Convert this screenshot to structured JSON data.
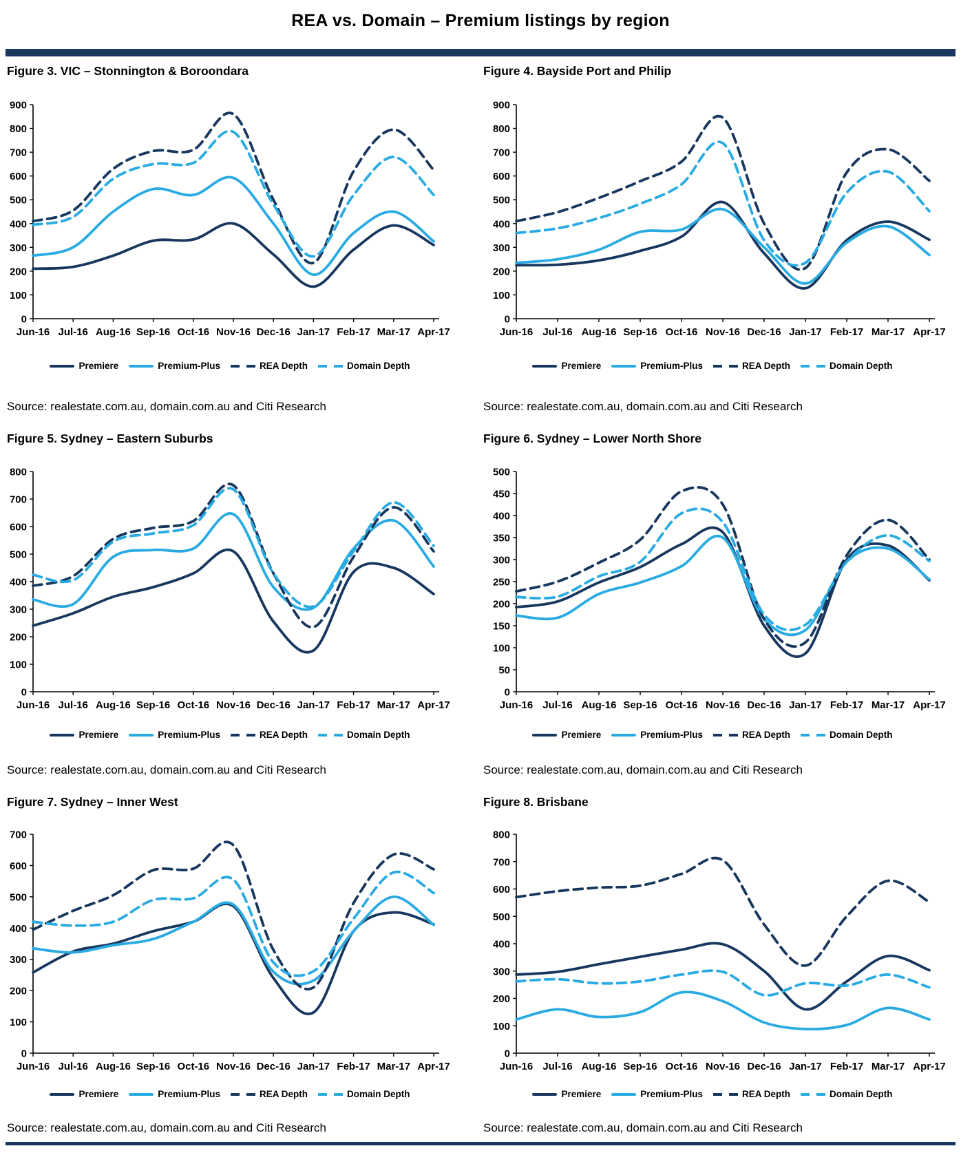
{
  "page": {
    "title": "REA vs. Domain – Premium listings by region",
    "accent_color": "#17375E",
    "source_label": "Source: realestate.com.au, domain.com.au and Citi Research"
  },
  "legend": [
    "Premiere",
    "Premium-Plus",
    "REA Depth",
    "Domain Depth"
  ],
  "series_styles": [
    {
      "name": "Premiere",
      "color": "#17375E",
      "dashed": false
    },
    {
      "name": "Premium-Plus",
      "color": "#29ABE2",
      "dashed": false
    },
    {
      "name": "REA Depth",
      "color": "#17375E",
      "dashed": true
    },
    {
      "name": "Domain Depth",
      "color": "#29ABE2",
      "dashed": true
    }
  ],
  "months": [
    "Jun-16",
    "Jul-16",
    "Aug-16",
    "Sep-16",
    "Oct-16",
    "Nov-16",
    "Dec-16",
    "Jan-17",
    "Feb-17",
    "Mar-17",
    "Apr-17"
  ],
  "chart_data": [
    {
      "type": "line",
      "title": "Figure 3. VIC – Stonnington & Boroondara",
      "categories": [
        "Jun-16",
        "Jul-16",
        "Aug-16",
        "Sep-16",
        "Oct-16",
        "Nov-16",
        "Dec-16",
        "Jan-17",
        "Feb-17",
        "Mar-17",
        "Apr-17"
      ],
      "ylim": [
        0,
        900
      ],
      "ystep": 100,
      "grid": false,
      "legend_position": "bottom",
      "series": [
        {
          "name": "Premiere",
          "values": [
            210,
            218,
            265,
            328,
            333,
            400,
            270,
            135,
            290,
            392,
            310
          ]
        },
        {
          "name": "Premium-Plus",
          "values": [
            265,
            300,
            450,
            545,
            520,
            592,
            400,
            185,
            360,
            450,
            325
          ]
        },
        {
          "name": "REA Depth",
          "values": [
            410,
            455,
            630,
            705,
            710,
            860,
            500,
            235,
            620,
            795,
            625
          ]
        },
        {
          "name": "Domain Depth",
          "values": [
            395,
            428,
            588,
            650,
            655,
            785,
            480,
            262,
            520,
            680,
            520
          ]
        }
      ]
    },
    {
      "type": "line",
      "title": "Figure 4. Bayside Port and Philip",
      "categories": [
        "Jun-16",
        "Jul-16",
        "Aug-16",
        "Sep-16",
        "Oct-16",
        "Nov-16",
        "Dec-16",
        "Jan-17",
        "Feb-17",
        "Mar-17",
        "Apr-17"
      ],
      "ylim": [
        0,
        900
      ],
      "ystep": 100,
      "grid": false,
      "legend_position": "bottom",
      "series": [
        {
          "name": "Premiere",
          "values": [
            225,
            227,
            245,
            285,
            345,
            490,
            275,
            128,
            330,
            408,
            332
          ]
        },
        {
          "name": "Premium-Plus",
          "values": [
            235,
            250,
            290,
            365,
            375,
            460,
            300,
            148,
            320,
            388,
            268
          ]
        },
        {
          "name": "REA Depth",
          "values": [
            410,
            448,
            508,
            578,
            660,
            845,
            400,
            213,
            615,
            712,
            580
          ]
        },
        {
          "name": "Domain Depth",
          "values": [
            360,
            380,
            423,
            483,
            565,
            738,
            330,
            235,
            530,
            618,
            452
          ]
        }
      ]
    },
    {
      "type": "line",
      "title": "Figure 5. Sydney – Eastern Suburbs",
      "categories": [
        "Jun-16",
        "Jul-16",
        "Aug-16",
        "Sep-16",
        "Oct-16",
        "Nov-16",
        "Dec-16",
        "Jan-17",
        "Feb-17",
        "Mar-17",
        "Apr-17"
      ],
      "ylim": [
        0,
        800
      ],
      "ystep": 100,
      "grid": false,
      "legend_position": "bottom",
      "series": [
        {
          "name": "Premiere",
          "values": [
            240,
            285,
            345,
            380,
            430,
            510,
            255,
            150,
            435,
            450,
            355
          ]
        },
        {
          "name": "Premium-Plus",
          "values": [
            335,
            318,
            490,
            515,
            520,
            645,
            380,
            305,
            520,
            622,
            455
          ]
        },
        {
          "name": "REA Depth",
          "values": [
            385,
            420,
            555,
            595,
            620,
            750,
            430,
            235,
            490,
            670,
            510
          ]
        },
        {
          "name": "Domain Depth",
          "values": [
            425,
            405,
            545,
            575,
            605,
            735,
            430,
            310,
            510,
            688,
            530
          ]
        }
      ]
    },
    {
      "type": "line",
      "title": "Figure 6. Sydney – Lower North Shore",
      "categories": [
        "Jun-16",
        "Jul-16",
        "Aug-16",
        "Sep-16",
        "Oct-16",
        "Nov-16",
        "Dec-16",
        "Jan-17",
        "Feb-17",
        "Mar-17",
        "Apr-17"
      ],
      "ylim": [
        0,
        500
      ],
      "ystep": 50,
      "grid": false,
      "legend_position": "bottom",
      "series": [
        {
          "name": "Premiere",
          "values": [
            192,
            205,
            248,
            283,
            335,
            362,
            150,
            87,
            300,
            332,
            253
          ]
        },
        {
          "name": "Premium-Plus",
          "values": [
            173,
            168,
            222,
            248,
            285,
            350,
            165,
            140,
            295,
            325,
            255
          ]
        },
        {
          "name": "REA Depth",
          "values": [
            228,
            250,
            293,
            345,
            455,
            425,
            165,
            112,
            310,
            390,
            300
          ]
        },
        {
          "name": "Domain Depth",
          "values": [
            215,
            216,
            262,
            295,
            405,
            385,
            175,
            152,
            295,
            355,
            297
          ]
        }
      ]
    },
    {
      "type": "line",
      "title": "Figure 7. Sydney – Inner West",
      "categories": [
        "Jun-16",
        "Jul-16",
        "Aug-16",
        "Sep-16",
        "Oct-16",
        "Nov-16",
        "Dec-16",
        "Jan-17",
        "Feb-17",
        "Mar-17",
        "Apr-17"
      ],
      "ylim": [
        0,
        700
      ],
      "ystep": 100,
      "grid": false,
      "legend_position": "bottom",
      "series": [
        {
          "name": "Premiere",
          "values": [
            258,
            325,
            350,
            390,
            420,
            470,
            240,
            130,
            390,
            450,
            412
          ]
        },
        {
          "name": "Premium-Plus",
          "values": [
            335,
            322,
            345,
            365,
            420,
            475,
            260,
            232,
            390,
            500,
            410
          ]
        },
        {
          "name": "REA Depth",
          "values": [
            395,
            455,
            505,
            585,
            590,
            665,
            330,
            210,
            480,
            635,
            588
          ]
        },
        {
          "name": "Domain Depth",
          "values": [
            420,
            408,
            420,
            490,
            495,
            555,
            290,
            262,
            430,
            578,
            512
          ]
        }
      ]
    },
    {
      "type": "line",
      "title": "Figure 8. Brisbane",
      "categories": [
        "Jun-16",
        "Jul-16",
        "Aug-16",
        "Sep-16",
        "Oct-16",
        "Nov-16",
        "Dec-16",
        "Jan-17",
        "Feb-17",
        "Mar-17",
        "Apr-17"
      ],
      "ylim": [
        0,
        800
      ],
      "ystep": 100,
      "grid": false,
      "legend_position": "bottom",
      "series": [
        {
          "name": "Premiere",
          "values": [
            287,
            297,
            325,
            352,
            378,
            398,
            300,
            160,
            262,
            355,
            303
          ]
        },
        {
          "name": "Premium-Plus",
          "values": [
            123,
            160,
            132,
            150,
            222,
            190,
            112,
            88,
            103,
            165,
            123
          ]
        },
        {
          "name": "REA Depth",
          "values": [
            570,
            592,
            605,
            612,
            655,
            705,
            470,
            320,
            500,
            630,
            552
          ]
        },
        {
          "name": "Domain Depth",
          "values": [
            262,
            270,
            255,
            262,
            287,
            297,
            212,
            255,
            247,
            287,
            240
          ]
        }
      ]
    }
  ]
}
